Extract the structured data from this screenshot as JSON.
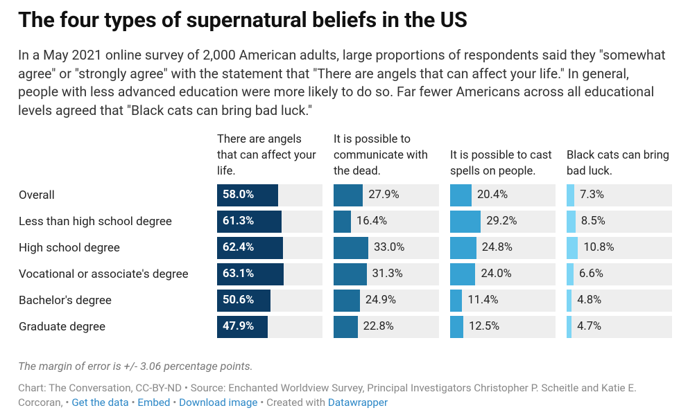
{
  "chart_data": {
    "type": "bar",
    "title": "The four types of supernatural beliefs in the US",
    "subtitle": "In a May 2021 online survey of 2,000 American adults, large proportions of respondents said they \"somewhat agree\" or \"strongly agree\" with the statement that \"There are angels that can affect your life.\" In general, people with less advanced education were more likely to do so. Far fewer Americans across all educational levels agreed that \"Black cats can bring bad luck.\"",
    "categories": [
      "Overall",
      "Less than high school degree",
      "High school degree",
      "Vocational or associate's degree",
      "Bachelor's degree",
      "Graduate degree"
    ],
    "xlim": [
      0,
      100
    ],
    "series": [
      {
        "name": "There are angels that can affect your life.",
        "color": "#0c3b63",
        "labels_inside": true,
        "values": [
          58.0,
          61.3,
          62.4,
          63.1,
          50.6,
          47.9
        ],
        "value_labels": [
          "58.0%",
          "61.3%",
          "62.4%",
          "63.1%",
          "50.6%",
          "47.9%"
        ]
      },
      {
        "name": "It is possible to communicate with the dead.",
        "color": "#1c6c98",
        "values": [
          27.9,
          16.4,
          33.0,
          31.3,
          24.9,
          22.8
        ],
        "value_labels": [
          "27.9%",
          "16.4%",
          "33.0%",
          "31.3%",
          "24.9%",
          "22.8%"
        ]
      },
      {
        "name": "It is possible to cast spells on people.",
        "color": "#37a2d3",
        "values": [
          20.4,
          29.2,
          24.8,
          24.0,
          11.4,
          12.5
        ],
        "value_labels": [
          "20.4%",
          "29.2%",
          "24.8%",
          "24.0%",
          "11.4%",
          "12.5%"
        ]
      },
      {
        "name": "Black cats can bring bad luck.",
        "color": "#7dd5f5",
        "values": [
          7.3,
          8.5,
          10.8,
          6.6,
          4.8,
          4.7
        ],
        "value_labels": [
          "7.3%",
          "8.5%",
          "10.8%",
          "6.6%",
          "4.8%",
          "4.7%"
        ]
      }
    ],
    "note": "The margin of error is +/- 3.06 percentage points.",
    "source": "Chart: The Conversation, CC-BY-ND • Source: Enchanted Worldview Survey, Principal Investigators Christopher P. Scheitle and Katie E. Corcoran, •",
    "separator": "•",
    "links": [
      "Get the data",
      "Embed",
      "Download image"
    ],
    "created": "Created with",
    "credit": "Datawrapper"
  }
}
